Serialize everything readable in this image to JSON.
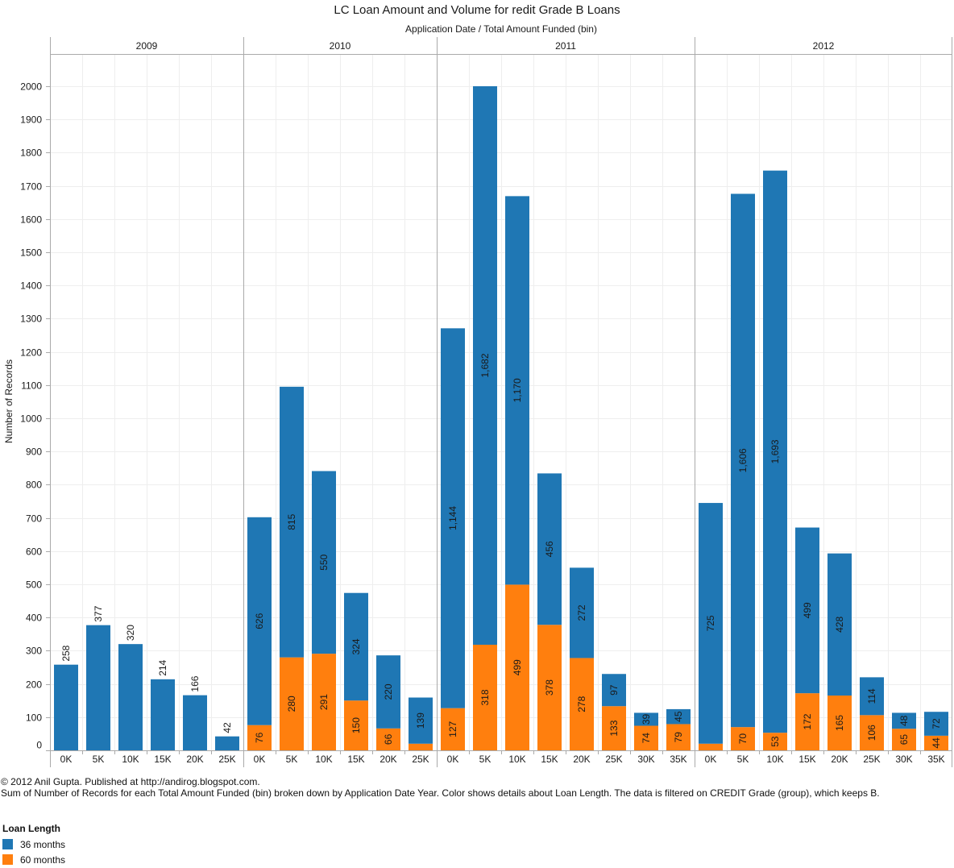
{
  "chart_data": {
    "type": "bar",
    "stacked": true,
    "title": "LC Loan Amount and Volume for redit Grade B Loans",
    "subtitle": "Application Date  /  Total Amount Funded (bin)",
    "ylabel": "Number of Records",
    "xlabel": "",
    "ylim": [
      0,
      2100
    ],
    "yticks": [
      0,
      100,
      200,
      300,
      400,
      500,
      600,
      700,
      800,
      900,
      1000,
      1100,
      1200,
      1300,
      1400,
      1500,
      1600,
      1700,
      1800,
      1900,
      2000
    ],
    "grid": true,
    "legend_position": "bottom-left",
    "series_names": [
      "36 months",
      "60 months"
    ],
    "colors": {
      "36 months": "#1f77b4",
      "60 months": "#ff7f0e"
    },
    "panels": [
      {
        "year": "2009",
        "categories": [
          "0K",
          "5K",
          "10K",
          "15K",
          "20K",
          "25K"
        ],
        "series": [
          {
            "name": "36 months",
            "values": [
              258,
              377,
              320,
              214,
              166,
              42
            ],
            "labels": [
              "258",
              "377",
              "320",
              "214",
              "166",
              "42"
            ]
          },
          {
            "name": "60 months",
            "values": [
              0,
              0,
              0,
              0,
              0,
              0
            ],
            "labels": [
              "",
              "",
              "",
              "",
              "",
              ""
            ]
          }
        ]
      },
      {
        "year": "2010",
        "categories": [
          "0K",
          "5K",
          "10K",
          "15K",
          "20K",
          "25K"
        ],
        "series": [
          {
            "name": "36 months",
            "values": [
              626,
              815,
              550,
              324,
              220,
              139
            ],
            "labels": [
              "626",
              "815",
              "550",
              "324",
              "220",
              "139"
            ]
          },
          {
            "name": "60 months",
            "values": [
              76,
              280,
              291,
              150,
              66,
              20
            ],
            "labels": [
              "76",
              "280",
              "291",
              "150",
              "66",
              ""
            ]
          }
        ]
      },
      {
        "year": "2011",
        "categories": [
          "0K",
          "5K",
          "10K",
          "15K",
          "20K",
          "25K",
          "30K",
          "35K"
        ],
        "series": [
          {
            "name": "36 months",
            "values": [
              1144,
              1682,
              1170,
              456,
              272,
              97,
              39,
              45
            ],
            "labels": [
              "1,144",
              "1,682",
              "1,170",
              "456",
              "272",
              "97",
              "39",
              "45"
            ]
          },
          {
            "name": "60 months",
            "values": [
              127,
              318,
              499,
              378,
              278,
              133,
              74,
              79
            ],
            "labels": [
              "127",
              "318",
              "499",
              "378",
              "278",
              "133",
              "74",
              "79"
            ]
          }
        ]
      },
      {
        "year": "2012",
        "categories": [
          "0K",
          "5K",
          "10K",
          "15K",
          "20K",
          "25K",
          "30K",
          "35K"
        ],
        "series": [
          {
            "name": "36 months",
            "values": [
              725,
              1606,
              1693,
              499,
              428,
              114,
              48,
              72
            ],
            "labels": [
              "725",
              "1,606",
              "1,693",
              "499",
              "428",
              "114",
              "48",
              "72"
            ]
          },
          {
            "name": "60 months",
            "values": [
              20,
              70,
              53,
              172,
              165,
              106,
              65,
              44
            ],
            "labels": [
              "",
              "70",
              "53",
              "172",
              "165",
              "106",
              "65",
              "44"
            ]
          }
        ]
      }
    ]
  },
  "footer": {
    "copyright": "© 2012 Anil Gupta. Published at http://andirog.blogspot.com.",
    "caption": "Sum of Number of Records for each Total Amount Funded (bin) broken down by Application Date Year.  Color shows details about Loan Length. The data is filtered on CREDIT Grade (group), which keeps B."
  },
  "legend": {
    "title": "Loan Length",
    "items": [
      {
        "label": "36 months",
        "color": "#1f77b4"
      },
      {
        "label": "60 months",
        "color": "#ff7f0e"
      }
    ]
  }
}
